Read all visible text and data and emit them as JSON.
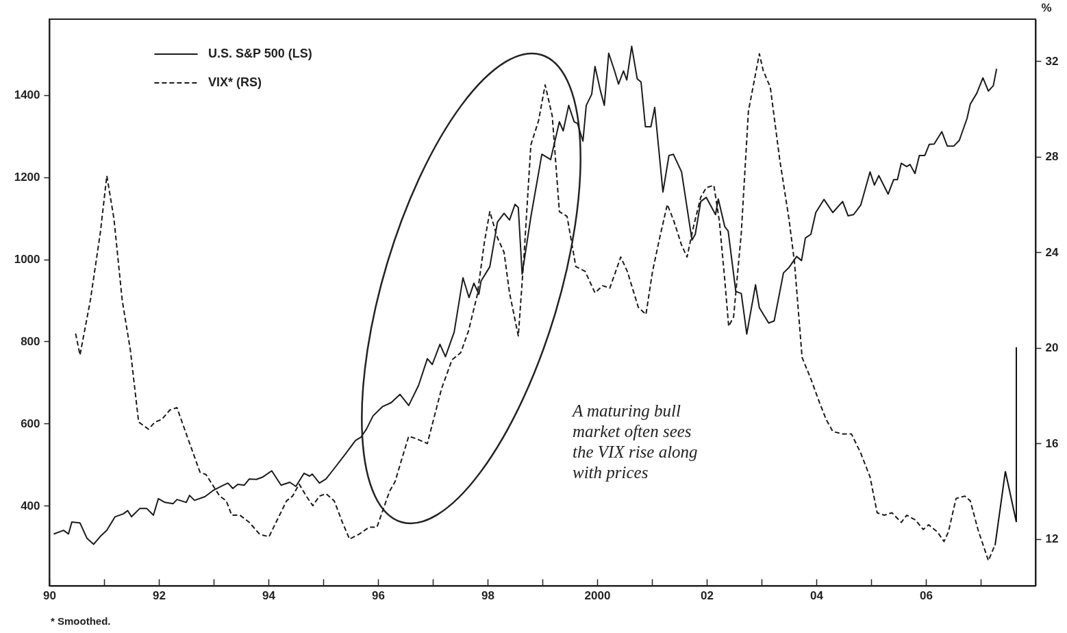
{
  "chart_data": {
    "type": "line",
    "y2label": "%",
    "legend": "top left",
    "grid": false,
    "xlim": [
      1990,
      2008
    ],
    "xticks": [
      {
        "value": 1990,
        "label": "90"
      },
      {
        "value": 1991,
        "label": null
      },
      {
        "value": 1992,
        "label": "92"
      },
      {
        "value": 1993,
        "label": null
      },
      {
        "value": 1994,
        "label": "94"
      },
      {
        "value": 1995,
        "label": null
      },
      {
        "value": 1996,
        "label": "96"
      },
      {
        "value": 1997,
        "label": null
      },
      {
        "value": 1998,
        "label": "98"
      },
      {
        "value": 1999,
        "label": null
      },
      2000,
      {
        "value": 2001,
        "label": null
      },
      {
        "value": 2002,
        "label": "02"
      },
      {
        "value": 2003,
        "label": null
      },
      {
        "value": 2004,
        "label": "04"
      },
      {
        "value": 2005,
        "label": null
      },
      {
        "value": 2006,
        "label": "06"
      },
      {
        "value": 2007,
        "label": null
      }
    ],
    "ylim": [
      205,
      1585
    ],
    "yticks": [
      400,
      600,
      800,
      1000,
      1200,
      1400
    ],
    "y2lim": [
      10.05,
      33.75
    ],
    "y2ticks": [
      12,
      16,
      20,
      24,
      28,
      32
    ],
    "annotations": [
      "A maturing bull market often sees the VIX rise along with prices",
      "* Smoothed."
    ],
    "series": [
      {
        "name": "U.S. S&P 500 (LS)",
        "color": "#1a1a1a",
        "line_style": "solid",
        "x": [
          1990.08,
          1990.26,
          1990.35,
          1990.41,
          1990.56,
          1990.69,
          1990.81,
          1990.93,
          1991.05,
          1991.2,
          1991.35,
          1991.43,
          1991.5,
          1991.65,
          1991.78,
          1991.9,
          1991.99,
          1992.11,
          1992.26,
          1992.33,
          1992.5,
          1992.56,
          1992.65,
          1992.84,
          1992.99,
          1993.18,
          1993.26,
          1993.35,
          1993.44,
          1993.56,
          1993.65,
          1993.78,
          1993.9,
          1994.06,
          1994.23,
          1994.39,
          1994.5,
          1994.65,
          1994.75,
          1994.8,
          1994.93,
          1995.05,
          1995.18,
          1995.41,
          1995.59,
          1995.69,
          1995.79,
          1995.91,
          1996.08,
          1996.24,
          1996.4,
          1996.56,
          1996.74,
          1996.9,
          1996.99,
          1997.13,
          1997.23,
          1997.39,
          1997.55,
          1997.66,
          1997.75,
          1997.84,
          1997.88,
          1998.04,
          1998.18,
          1998.3,
          1998.4,
          1998.5,
          1998.56,
          1998.63,
          1998.79,
          1998.99,
          1999.15,
          1999.31,
          1999.38,
          1999.48,
          1999.58,
          1999.64,
          1999.74,
          1999.8,
          1999.9,
          1999.96,
          2000.06,
          2000.13,
          2000.21,
          2000.31,
          2000.39,
          2000.48,
          2000.54,
          2000.63,
          2000.73,
          2000.8,
          2000.88,
          2000.98,
          2001.05,
          2001.2,
          2001.31,
          2001.39,
          2001.54,
          2001.73,
          2001.79,
          2001.89,
          2001.99,
          2002.16,
          2002.21,
          2002.33,
          2002.39,
          2002.53,
          2002.63,
          2002.73,
          2002.89,
          2002.96,
          2003.13,
          2003.23,
          2003.4,
          2003.5,
          2003.64,
          2003.73,
          2003.8,
          2003.9,
          2003.99,
          2004.14,
          2004.3,
          2004.48,
          2004.58,
          2004.68,
          2004.81,
          2004.98,
          2005.06,
          2005.14,
          2005.31,
          2005.41,
          2005.48,
          2005.55,
          2005.65,
          2005.71,
          2005.8,
          2005.88,
          2005.98,
          2006.06,
          2006.15,
          2006.29,
          2006.39,
          2006.51,
          2006.61,
          2006.75,
          2006.81,
          2006.93,
          2007.04,
          2007.14,
          2007.23,
          2007.29
        ],
        "values": [
          331,
          340,
          331,
          360,
          358,
          320,
          306,
          325,
          340,
          373,
          380,
          388,
          373,
          393,
          393,
          377,
          417,
          408,
          405,
          415,
          408,
          425,
          413,
          422,
          437,
          450,
          455,
          442,
          452,
          450,
          465,
          464,
          470,
          485,
          450,
          457,
          447,
          479,
          472,
          477,
          455,
          465,
          487,
          527,
          559,
          567,
          587,
          619,
          641,
          651,
          671,
          644,
          693,
          758,
          744,
          793,
          763,
          823,
          955,
          907,
          942,
          915,
          947,
          982,
          1091,
          1112,
          1096,
          1134,
          1126,
          964,
          1104,
          1256,
          1243,
          1335,
          1313,
          1375,
          1335,
          1331,
          1288,
          1375,
          1402,
          1470,
          1410,
          1375,
          1502,
          1462,
          1427,
          1459,
          1437,
          1519,
          1440,
          1432,
          1323,
          1323,
          1370,
          1164,
          1253,
          1256,
          1213,
          1047,
          1061,
          1141,
          1151,
          1109,
          1147,
          1079,
          1069,
          922,
          917,
          818,
          938,
          882,
          845,
          850,
          967,
          980,
          1007,
          997,
          1052,
          1061,
          1114,
          1146,
          1114,
          1141,
          1106,
          1109,
          1132,
          1213,
          1181,
          1204,
          1159,
          1194,
          1194,
          1234,
          1226,
          1231,
          1209,
          1253,
          1253,
          1280,
          1281,
          1311,
          1276,
          1276,
          1290,
          1343,
          1378,
          1405,
          1442,
          1410,
          1423,
          1464
        ]
      },
      {
        "name": "VIX* (RS)",
        "color": "#1a1a1a",
        "line_style": "dashed",
        "axis": "y2",
        "x": [
          1990.48,
          1990.56,
          1990.75,
          1990.93,
          1991.05,
          1991.18,
          1991.33,
          1991.48,
          1991.63,
          1991.81,
          1991.93,
          1992.05,
          1992.2,
          1992.33,
          1992.5,
          1992.75,
          1992.86,
          1993.11,
          1993.23,
          1993.33,
          1993.48,
          1993.65,
          1993.84,
          1994.01,
          1994.33,
          1994.44,
          1994.56,
          1994.69,
          1994.81,
          1994.93,
          1995.05,
          1995.2,
          1995.35,
          1995.48,
          1995.65,
          1995.84,
          1995.98,
          1996.21,
          1996.31,
          1996.44,
          1996.56,
          1996.7,
          1996.9,
          1996.99,
          1997.16,
          1997.35,
          1997.51,
          1997.65,
          1997.81,
          1997.94,
          1998.04,
          1998.18,
          1998.3,
          1998.4,
          1998.56,
          1998.66,
          1998.79,
          1998.93,
          1999.05,
          1999.18,
          1999.31,
          1999.45,
          1999.61,
          1999.78,
          1999.96,
          2000.1,
          2000.23,
          2000.43,
          2000.55,
          2000.75,
          2000.89,
          2001.01,
          2001.15,
          2001.28,
          2001.4,
          2001.54,
          2001.64,
          2001.75,
          2001.89,
          2001.99,
          2002.13,
          2002.23,
          2002.33,
          2002.4,
          2002.49,
          2002.63,
          2002.76,
          2002.96,
          2003.03,
          2003.16,
          2003.33,
          2003.5,
          2003.6,
          2003.74,
          2003.9,
          2004.06,
          2004.18,
          2004.3,
          2004.48,
          2004.64,
          2004.81,
          2004.98,
          2005.11,
          2005.24,
          2005.38,
          2005.55,
          2005.65,
          2005.81,
          2005.95,
          2006.05,
          2006.21,
          2006.33,
          2006.41,
          2006.55,
          2006.71,
          2006.81,
          2006.95,
          2007.14,
          2007.25
        ],
        "values": [
          20.6,
          19.7,
          22.0,
          24.8,
          27.2,
          25.4,
          22.0,
          19.9,
          16.9,
          16.6,
          16.9,
          17.0,
          17.4,
          17.5,
          16.4,
          14.8,
          14.7,
          13.8,
          13.6,
          13.0,
          13.0,
          12.7,
          12.2,
          12.1,
          13.6,
          13.8,
          14.3,
          13.8,
          13.4,
          13.8,
          13.9,
          13.6,
          12.7,
          12.0,
          12.2,
          12.5,
          12.5,
          14.0,
          14.4,
          15.4,
          16.3,
          16.2,
          16.0,
          16.8,
          18.3,
          19.5,
          19.8,
          20.7,
          22.2,
          24.4,
          25.7,
          24.6,
          24.0,
          22.3,
          20.5,
          23.7,
          28.5,
          29.5,
          31.0,
          29.7,
          25.7,
          25.5,
          23.4,
          23.2,
          22.3,
          22.6,
          22.5,
          23.8,
          23.2,
          21.7,
          21.4,
          23.2,
          24.7,
          26.0,
          25.3,
          24.3,
          23.8,
          25.0,
          26.3,
          26.7,
          26.8,
          25.3,
          22.8,
          20.9,
          21.3,
          24.8,
          29.9,
          32.3,
          31.6,
          30.9,
          27.9,
          25.4,
          23.6,
          19.6,
          18.7,
          17.7,
          17.0,
          16.5,
          16.4,
          16.4,
          15.6,
          14.6,
          13.1,
          13.0,
          13.1,
          12.7,
          13.0,
          12.8,
          12.4,
          12.6,
          12.3,
          11.9,
          12.3,
          13.7,
          13.8,
          13.6,
          12.4,
          11.1,
          11.7
        ]
      }
    ]
  }
}
